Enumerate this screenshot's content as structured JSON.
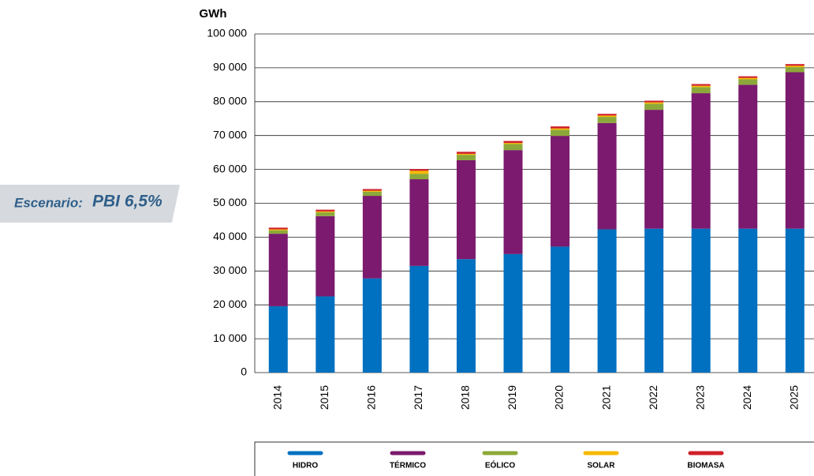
{
  "chart_data": {
    "type": "stacked-bar",
    "annotation_label": "Escenario:",
    "annotation_value": "PBI 6,5%",
    "y_label": "GWh",
    "categories": [
      "2014",
      "2015",
      "2016",
      "2017",
      "2018",
      "2019",
      "2020",
      "2021",
      "2022",
      "2023",
      "2024",
      "2025"
    ],
    "series": [
      {
        "name": "HIDRO",
        "color": "#0070c0",
        "values": [
          19600,
          22500,
          27800,
          31500,
          33500,
          35000,
          37200,
          42300,
          42500,
          42500,
          42500,
          42500
        ]
      },
      {
        "name": "TÉRMICO",
        "color": "#7b1a6e",
        "values": [
          21400,
          23700,
          24400,
          25600,
          29200,
          30700,
          32700,
          31400,
          35100,
          40000,
          42500,
          46200
        ]
      },
      {
        "name": "EÓLICO",
        "color": "#8ca83a",
        "values": [
          1000,
          1100,
          1200,
          1600,
          1600,
          1800,
          1800,
          1800,
          1800,
          1800,
          1600,
          1500
        ]
      },
      {
        "name": "SOLAR",
        "color": "#f5b800",
        "values": [
          300,
          300,
          300,
          900,
          300,
          300,
          400,
          400,
          400,
          400,
          400,
          400
        ]
      },
      {
        "name": "BIOMASA",
        "color": "#d0202a",
        "values": [
          500,
          500,
          500,
          500,
          600,
          600,
          600,
          500,
          500,
          500,
          500,
          500
        ]
      }
    ],
    "ylim": [
      0,
      100000
    ],
    "yticks": [
      0,
      {
        "value": 10000,
        "label": "10 000"
      },
      {
        "value": 20000,
        "label": "20 000"
      },
      {
        "value": 30000,
        "label": "30 000"
      },
      {
        "value": 40000,
        "label": "40 000"
      },
      {
        "value": 50000,
        "label": "50 000"
      },
      {
        "value": 60000,
        "label": "60 000"
      },
      {
        "value": 70000,
        "label": "70 000"
      },
      {
        "value": 80000,
        "label": "80 000"
      },
      {
        "value": 90000,
        "label": "90 000"
      },
      {
        "value": 100000,
        "label": "100 000"
      }
    ],
    "grid": true
  }
}
